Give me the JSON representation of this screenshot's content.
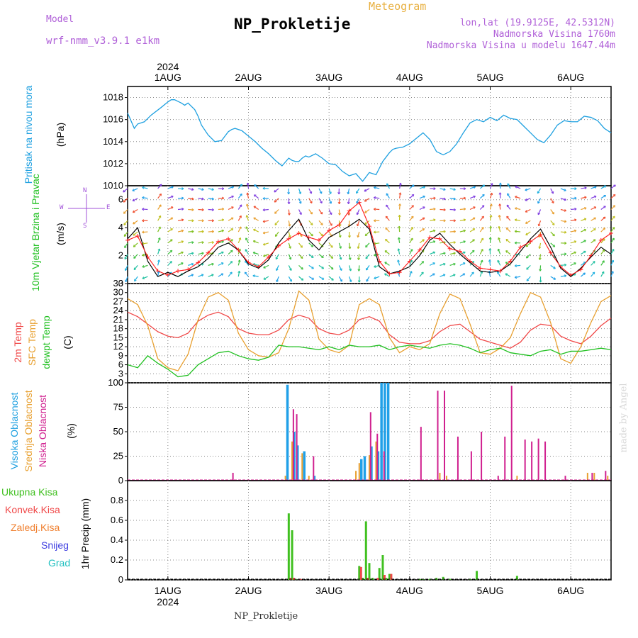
{
  "header": {
    "model_label": "Model",
    "model_name": "wrf-nmm_v3.9.1 e1km",
    "title": "NP_Prokletije",
    "subtitle": "Meteogram",
    "lonlat": "lon,lat (19.9125E, 42.5312N)",
    "elevation": "Nadmorska Visina 1760m",
    "model_elevation": "Nadmorska Visina u modelu 1647.44m"
  },
  "footer": {
    "station": "NP_Prokletije",
    "signature": "made by Angel"
  },
  "colors": {
    "pressure": "#1ea0e0",
    "wind_speed": "#000000",
    "gust": "#ff2020",
    "t2m": "#f04848",
    "tsfc": "#e8a030",
    "dewpt": "#20c020",
    "cloud_high": "#20a0e8",
    "cloud_mid": "#e8a030",
    "cloud_low": "#d0208f",
    "precip_total": "#40c020",
    "precip_conv": "#f04848",
    "precip_frz": "#f08030",
    "precip_snow": "#4040e0",
    "precip_hail": "#20c0c0",
    "vane_north": "#8040e0"
  },
  "chart_data": [
    {
      "type": "line",
      "panel": "pressure",
      "x_axis": {
        "unit": "hours since 2024-08-01 00:00 UTC",
        "range": [
          -12,
          132
        ],
        "tick_labels": [
          "1AUG",
          "2AUG",
          "3AUG",
          "4AUG",
          "5AUG",
          "6AUG"
        ],
        "tick_hours": [
          0,
          24,
          48,
          72,
          96,
          120
        ],
        "year_label": "2024"
      },
      "ylabel_left": "Pritisak na nivou mora",
      "ylabel_unit": "(hPa)",
      "ylim": [
        1010,
        1019
      ],
      "yticks": [
        1010,
        1012,
        1014,
        1016,
        1018
      ],
      "grid": true,
      "series": [
        {
          "name": "Pritisak na nivou mora",
          "x": [
            -12,
            -10,
            -9,
            -7,
            -5,
            -2,
            0,
            1,
            2,
            4,
            5,
            6,
            8,
            9,
            10,
            12,
            14,
            16,
            18,
            19,
            20,
            22,
            24,
            26,
            28,
            30,
            32,
            34,
            36,
            37,
            38,
            39,
            40,
            41,
            42,
            44,
            46,
            48,
            50,
            52,
            54,
            56,
            58,
            60,
            62,
            63,
            64,
            65,
            66,
            67,
            68,
            70,
            72,
            74,
            76,
            78,
            80,
            82,
            84,
            86,
            88,
            90,
            92,
            94,
            96,
            98,
            100,
            102,
            104,
            106,
            108,
            110,
            112,
            114,
            116,
            118,
            120,
            122,
            124,
            126,
            128,
            130,
            132
          ],
          "y": [
            1016.6,
            1015.2,
            1015.6,
            1015.8,
            1016.4,
            1017.1,
            1017.6,
            1017.8,
            1017.8,
            1017.5,
            1017.3,
            1017.5,
            1016.9,
            1016.3,
            1015.5,
            1014.6,
            1014.0,
            1014.1,
            1014.9,
            1015.1,
            1015.2,
            1015.0,
            1014.5,
            1014.0,
            1013.4,
            1012.9,
            1012.3,
            1011.8,
            1012.5,
            1012.3,
            1012.2,
            1012.2,
            1012.5,
            1012.7,
            1012.6,
            1012.9,
            1012.5,
            1012.0,
            1011.9,
            1011.3,
            1010.9,
            1011.1,
            1010.4,
            1011.2,
            1011.0,
            1011.6,
            1012.2,
            1012.6,
            1013.0,
            1013.3,
            1013.4,
            1013.5,
            1013.8,
            1014.3,
            1014.8,
            1014.2,
            1013.1,
            1012.8,
            1013.1,
            1013.8,
            1014.8,
            1015.7,
            1016.0,
            1015.8,
            1016.2,
            1015.9,
            1016.4,
            1016.1,
            1016.0,
            1015.4,
            1014.8,
            1014.2,
            1013.9,
            1014.6,
            1015.5,
            1015.9,
            1015.8,
            1015.8,
            1016.3,
            1016.2,
            1015.9,
            1015.2,
            1014.8
          ]
        }
      ]
    },
    {
      "type": "line",
      "panel": "wind",
      "ylabel_left": "10m Vjetar Brzina i Pravac",
      "ylabel_unit": "(m/s)",
      "compass_labels": [
        "N",
        "W",
        "E",
        "S"
      ],
      "ylim": [
        0,
        7
      ],
      "yticks": [
        0,
        2,
        4,
        6
      ],
      "grid": true,
      "series": [
        {
          "name": "Brzina",
          "x": [
            -12,
            -9,
            -6,
            -3,
            0,
            3,
            6,
            9,
            12,
            15,
            18,
            21,
            24,
            27,
            30,
            33,
            36,
            39,
            42,
            45,
            48,
            51,
            54,
            57,
            60,
            63,
            66,
            69,
            72,
            75,
            78,
            81,
            84,
            87,
            90,
            93,
            96,
            99,
            102,
            105,
            108,
            111,
            114,
            117,
            120,
            123,
            126,
            129,
            132
          ],
          "y": [
            3.2,
            4.0,
            1.6,
            0.5,
            0.8,
            0.5,
            0.9,
            1.2,
            1.8,
            2.6,
            2.9,
            2.4,
            1.4,
            1.1,
            1.7,
            2.9,
            3.8,
            4.6,
            3.1,
            2.4,
            3.3,
            3.7,
            4.1,
            4.6,
            3.9,
            1.2,
            0.7,
            0.9,
            1.2,
            2.0,
            3.1,
            3.6,
            2.8,
            2.1,
            1.5,
            0.9,
            0.8,
            0.9,
            1.4,
            2.3,
            3.2,
            3.9,
            2.6,
            1.1,
            0.5,
            1.1,
            1.9,
            2.6,
            2.1
          ]
        },
        {
          "name": "Udar",
          "x": [
            -12,
            -9,
            -6,
            -3,
            0,
            3,
            6,
            9,
            12,
            15,
            18,
            21,
            24,
            27,
            30,
            33,
            36,
            39,
            42,
            45,
            48,
            51,
            54,
            57,
            60,
            63,
            66,
            69,
            72,
            75,
            78,
            81,
            84,
            87,
            90,
            93,
            96,
            99,
            102,
            105,
            108,
            111,
            114,
            117,
            120,
            123,
            126,
            129,
            132
          ],
          "y": [
            3.1,
            3.4,
            1.9,
            0.9,
            0.6,
            0.9,
            1.0,
            1.5,
            2.2,
            3.0,
            3.2,
            2.4,
            1.5,
            1.2,
            1.9,
            2.7,
            3.2,
            3.6,
            3.3,
            3.1,
            3.8,
            4.2,
            5.2,
            5.8,
            4.1,
            1.6,
            0.7,
            0.8,
            1.6,
            2.4,
            3.3,
            3.2,
            2.5,
            2.3,
            1.6,
            1.1,
            1.0,
            0.9,
            1.6,
            2.6,
            3.0,
            3.5,
            2.2,
            1.2,
            0.6,
            1.0,
            2.0,
            3.1,
            3.6
          ]
        }
      ],
      "vane_layers": [
        0.5,
        1.3,
        2.1,
        2.9,
        3.7,
        4.5,
        5.3,
        6.1,
        6.8
      ],
      "vane_dir_deg": [
        200,
        215,
        250,
        10,
        40,
        60,
        70,
        70,
        70,
        60,
        40,
        10,
        320,
        280,
        240,
        200,
        150,
        130,
        120,
        120,
        130,
        150,
        160,
        180,
        210,
        250,
        300,
        340,
        20,
        40,
        60,
        70,
        70,
        60,
        40,
        20,
        350,
        330,
        300,
        260,
        220,
        180,
        120,
        80,
        60,
        50,
        40,
        30,
        20
      ]
    },
    {
      "type": "line",
      "panel": "temperature",
      "ylabel_left": [
        "2m Temp",
        "SFC Temp",
        "dewpt Temp"
      ],
      "ylabel_unit": "(C)",
      "ylim": [
        0,
        33
      ],
      "yticks": [
        0,
        3,
        6,
        9,
        12,
        15,
        18,
        21,
        24,
        27,
        30,
        33
      ],
      "grid": true,
      "series": [
        {
          "name": "2m Temp",
          "x": [
            -12,
            -9,
            -6,
            -3,
            0,
            3,
            6,
            9,
            12,
            15,
            18,
            21,
            24,
            27,
            30,
            33,
            36,
            39,
            42,
            45,
            48,
            51,
            54,
            57,
            60,
            63,
            66,
            69,
            72,
            75,
            78,
            81,
            84,
            87,
            90,
            93,
            96,
            99,
            102,
            105,
            108,
            111,
            114,
            117,
            120,
            123,
            126,
            129,
            132
          ],
          "y": [
            23.5,
            22.0,
            19.5,
            17.0,
            15.5,
            15.0,
            16.5,
            20.5,
            22.5,
            23.5,
            22.0,
            18.0,
            16.5,
            16.0,
            16.0,
            17.5,
            21.0,
            22.5,
            21.5,
            18.0,
            16.5,
            16.0,
            17.5,
            21.0,
            22.0,
            20.5,
            16.0,
            13.5,
            13.0,
            13.0,
            14.0,
            17.0,
            19.0,
            19.5,
            17.0,
            14.5,
            13.5,
            12.5,
            11.5,
            13.5,
            17.5,
            19.5,
            19.0,
            15.5,
            14.0,
            13.0,
            15.5,
            19.0,
            21.5
          ]
        },
        {
          "name": "SFC Temp",
          "x": [
            -12,
            -9,
            -6,
            -3,
            0,
            3,
            6,
            9,
            12,
            15,
            18,
            21,
            24,
            27,
            30,
            33,
            36,
            39,
            42,
            45,
            48,
            51,
            54,
            57,
            60,
            63,
            66,
            69,
            72,
            75,
            78,
            81,
            84,
            87,
            90,
            93,
            96,
            99,
            102,
            105,
            108,
            111,
            114,
            117,
            120,
            123,
            126,
            129,
            132
          ],
          "y": [
            28.0,
            26.0,
            19.0,
            8.0,
            5.0,
            4.0,
            9.5,
            21.0,
            28.5,
            30.0,
            27.5,
            16.5,
            11.0,
            9.0,
            8.5,
            10.0,
            18.0,
            30.5,
            27.5,
            14.5,
            11.0,
            10.0,
            12.5,
            26.0,
            28.0,
            26.0,
            15.0,
            10.0,
            12.0,
            11.0,
            13.0,
            23.0,
            29.5,
            28.0,
            19.5,
            10.0,
            9.5,
            11.5,
            15.0,
            23.0,
            30.0,
            28.5,
            20.0,
            8.0,
            6.5,
            12.0,
            20.0,
            27.0,
            29.0
          ]
        },
        {
          "name": "dewpt Temp",
          "x": [
            -12,
            -9,
            -6,
            -3,
            0,
            3,
            6,
            9,
            12,
            15,
            18,
            21,
            24,
            27,
            30,
            33,
            36,
            39,
            42,
            45,
            48,
            51,
            54,
            57,
            60,
            63,
            66,
            69,
            72,
            75,
            78,
            81,
            84,
            87,
            90,
            93,
            96,
            99,
            102,
            105,
            108,
            111,
            114,
            117,
            120,
            123,
            126,
            129,
            132
          ],
          "y": [
            6.0,
            5.0,
            9.0,
            6.5,
            4.5,
            2.0,
            2.5,
            6.0,
            8.0,
            10.0,
            10.5,
            9.0,
            8.0,
            7.5,
            8.5,
            12.5,
            12.0,
            12.0,
            11.5,
            11.0,
            12.0,
            11.0,
            12.5,
            12.0,
            12.0,
            12.5,
            11.0,
            12.0,
            12.5,
            12.0,
            11.5,
            12.5,
            13.0,
            12.5,
            11.5,
            10.0,
            11.0,
            11.5,
            10.0,
            9.5,
            9.0,
            10.5,
            11.0,
            9.5,
            10.5,
            10.5,
            11.0,
            11.5,
            11.0
          ]
        }
      ]
    },
    {
      "type": "bar",
      "panel": "clouds",
      "ylabel_left": [
        "Visoka Oblacnost",
        "Srednja Oblacnost",
        "Niska Oblacnost"
      ],
      "ylabel_unit": "(%)",
      "ylim": [
        0,
        100
      ],
      "yticks": [
        0,
        25,
        50,
        75,
        100
      ],
      "grid": true,
      "series": [
        {
          "name": "Visoka Oblacnost",
          "x": [
            36,
            38,
            39,
            41,
            44,
            58,
            59,
            61,
            63,
            64,
            65,
            66
          ],
          "values": [
            98,
            50,
            36,
            30,
            5,
            22,
            25,
            35,
            30,
            100,
            100,
            100
          ]
        },
        {
          "name": "Srednja Oblacnost",
          "x": [
            35,
            37,
            40,
            42,
            56,
            57,
            60,
            62,
            81,
            83,
            104,
            125,
            127,
            131
          ],
          "values": [
            5,
            40,
            28,
            5,
            10,
            18,
            26,
            40,
            8,
            5,
            5,
            8,
            8,
            5
          ]
        },
        {
          "name": "Niska Oblacnost",
          "x": [
            19,
            37,
            38,
            43,
            60,
            62,
            64,
            75,
            80,
            82,
            86,
            90,
            93,
            98,
            100,
            102,
            106,
            108,
            110,
            112,
            118,
            126,
            130
          ],
          "values": [
            8,
            73,
            68,
            25,
            70,
            48,
            30,
            55,
            92,
            92,
            45,
            30,
            50,
            5,
            45,
            97,
            42,
            40,
            43,
            40,
            5,
            8,
            10
          ]
        }
      ]
    },
    {
      "type": "bar",
      "panel": "precipitation",
      "legend": [
        "Ukupna Kisa",
        "Konvek.Kisa",
        "Zaledj.Kisa",
        "Snijeg",
        "Grad"
      ],
      "ylabel_unit": "1hr Precip (mm)",
      "ylim": [
        0,
        1.0
      ],
      "yticks": [
        0,
        0.2,
        0.4,
        0.6,
        0.8
      ],
      "grid": true,
      "series": [
        {
          "name": "Ukupna Kisa",
          "x": [
            36,
            37,
            38,
            57,
            58,
            59,
            60,
            61,
            63,
            64,
            65,
            66,
            75,
            76,
            78,
            80,
            82,
            84,
            90,
            92,
            104
          ],
          "values": [
            0.67,
            0.5,
            0.01,
            0.14,
            0.02,
            0.59,
            0.17,
            0.02,
            0.12,
            0.25,
            0.02,
            0.06,
            0.01,
            0.01,
            0.01,
            0.02,
            0.03,
            0.01,
            0.01,
            0.09,
            0.04
          ]
        },
        {
          "name": "Konvek.Kisa",
          "x": [
            36,
            37,
            39,
            57,
            59,
            62,
            64,
            66
          ],
          "values": [
            0.02,
            0.02,
            0.01,
            0.13,
            0.02,
            0.02,
            0.05,
            0.06
          ]
        }
      ]
    }
  ]
}
